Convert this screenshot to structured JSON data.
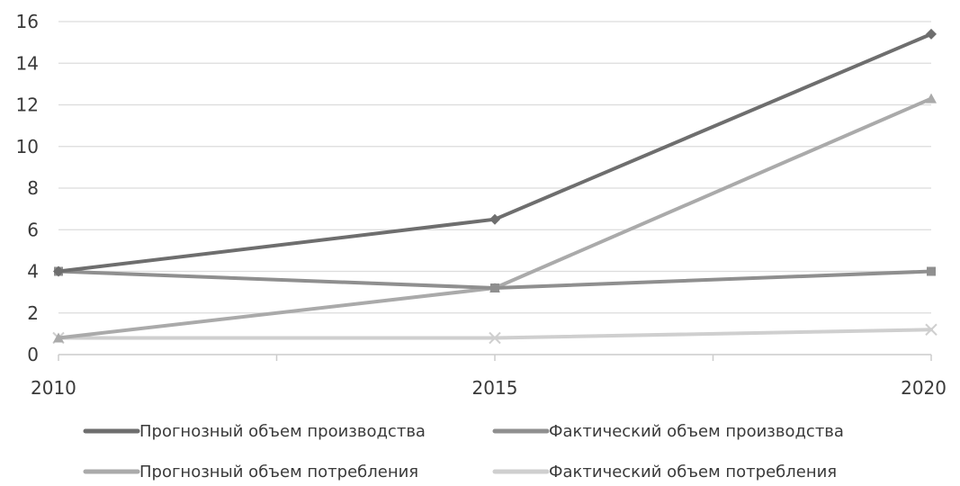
{
  "chart_data": {
    "type": "line",
    "x": [
      2010,
      2015,
      2020
    ],
    "ylim": [
      0,
      16
    ],
    "yticks": [
      0,
      2,
      4,
      6,
      8,
      10,
      12,
      14,
      16
    ],
    "xticks": [
      "2010",
      "2015",
      "2020"
    ],
    "grid": true,
    "legend_position": "bottom",
    "series": [
      {
        "name": "Прогнозный объем производства",
        "values": [
          4.0,
          6.5,
          15.4
        ],
        "color": "#6e6e6e",
        "marker": "diamond"
      },
      {
        "name": "Фактический объем производства",
        "values": [
          4.0,
          3.2,
          4.0
        ],
        "color": "#8f8f8f",
        "marker": "square"
      },
      {
        "name": "Прогнозный объем потребления",
        "values": [
          0.8,
          3.2,
          12.3
        ],
        "color": "#aaaaaa",
        "marker": "triangle"
      },
      {
        "name": "Фактический объем потребления",
        "values": [
          0.8,
          0.8,
          1.2
        ],
        "color": "#cfcfcf",
        "marker": "x"
      }
    ]
  }
}
